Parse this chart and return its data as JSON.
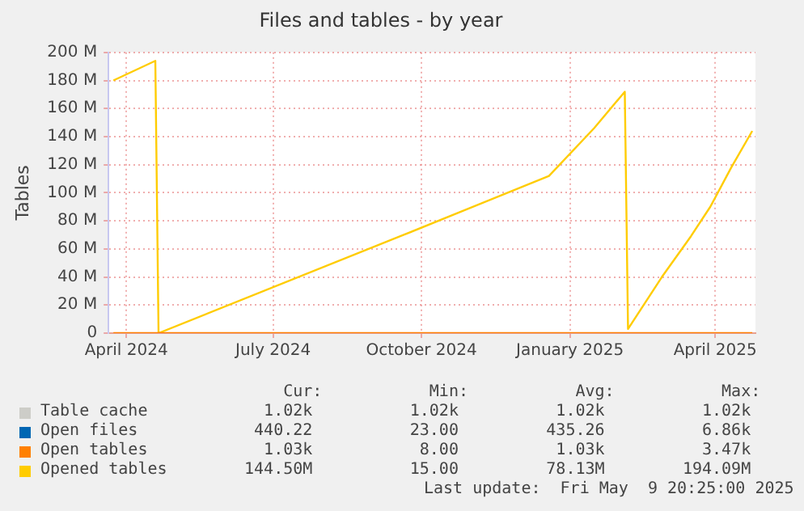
{
  "chart_data": {
    "type": "line",
    "title": "Files and tables - by year",
    "ylabel": "Tables",
    "xlim": [
      "2024-03-21",
      "2025-04-26"
    ],
    "xticks": [
      {
        "value": "2024-04-01",
        "label": "April 2024"
      },
      {
        "value": "2024-07-01",
        "label": "July 2024"
      },
      {
        "value": "2024-10-01",
        "label": "October 2024"
      },
      {
        "value": "2025-01-01",
        "label": "January 2025"
      },
      {
        "value": "2025-04-01",
        "label": "April 2025"
      }
    ],
    "ylim": [
      0,
      200
    ],
    "yticks": [
      {
        "value": 0,
        "label": "0"
      },
      {
        "value": 20,
        "label": "20 M"
      },
      {
        "value": 40,
        "label": "40 M"
      },
      {
        "value": 60,
        "label": "60 M"
      },
      {
        "value": 80,
        "label": "80 M"
      },
      {
        "value": 100,
        "label": "100 M"
      },
      {
        "value": 120,
        "label": "120 M"
      },
      {
        "value": 140,
        "label": "140 M"
      },
      {
        "value": 160,
        "label": "160 M"
      },
      {
        "value": 180,
        "label": "180 M"
      },
      {
        "value": 200,
        "label": "200 M"
      }
    ],
    "grid": true,
    "legend": "bottom",
    "marker": "none",
    "line_style": "solid",
    "series": [
      {
        "name": "Table cache",
        "color": "#cdcdc8"
      },
      {
        "name": "Open files",
        "color": "#0066b3"
      },
      {
        "name": "Open tables",
        "color": "#ff8000",
        "x": [
          "2024-03-24",
          "2025-04-24"
        ],
        "values": [
          0,
          0
        ]
      },
      {
        "name": "Opened tables",
        "color": "#ffcc00",
        "x": [
          "2024-03-24",
          "2024-04-19",
          "2024-04-21",
          "2024-09-20",
          "2024-12-19",
          "2025-01-16",
          "2025-02-04",
          "2025-02-06",
          "2025-02-27",
          "2025-03-17",
          "2025-03-29",
          "2025-04-11",
          "2025-04-24"
        ],
        "values": [
          180,
          194,
          0,
          70,
          112,
          146,
          172,
          3,
          40,
          69,
          90,
          118,
          144
        ]
      }
    ],
    "annotations": [
      "     Cur:           Min:           Avg:           Max:",
      "   1.02k          1.02k          1.02k          1.02k",
      "  440.22          23.00         435.26          6.86k",
      "   1.03k           8.00          1.03k          3.47k",
      " 144.50M          15.00         78.13M        194.09M",
      "Last update:  Fri May  9 20:25:00 2025"
    ]
  }
}
